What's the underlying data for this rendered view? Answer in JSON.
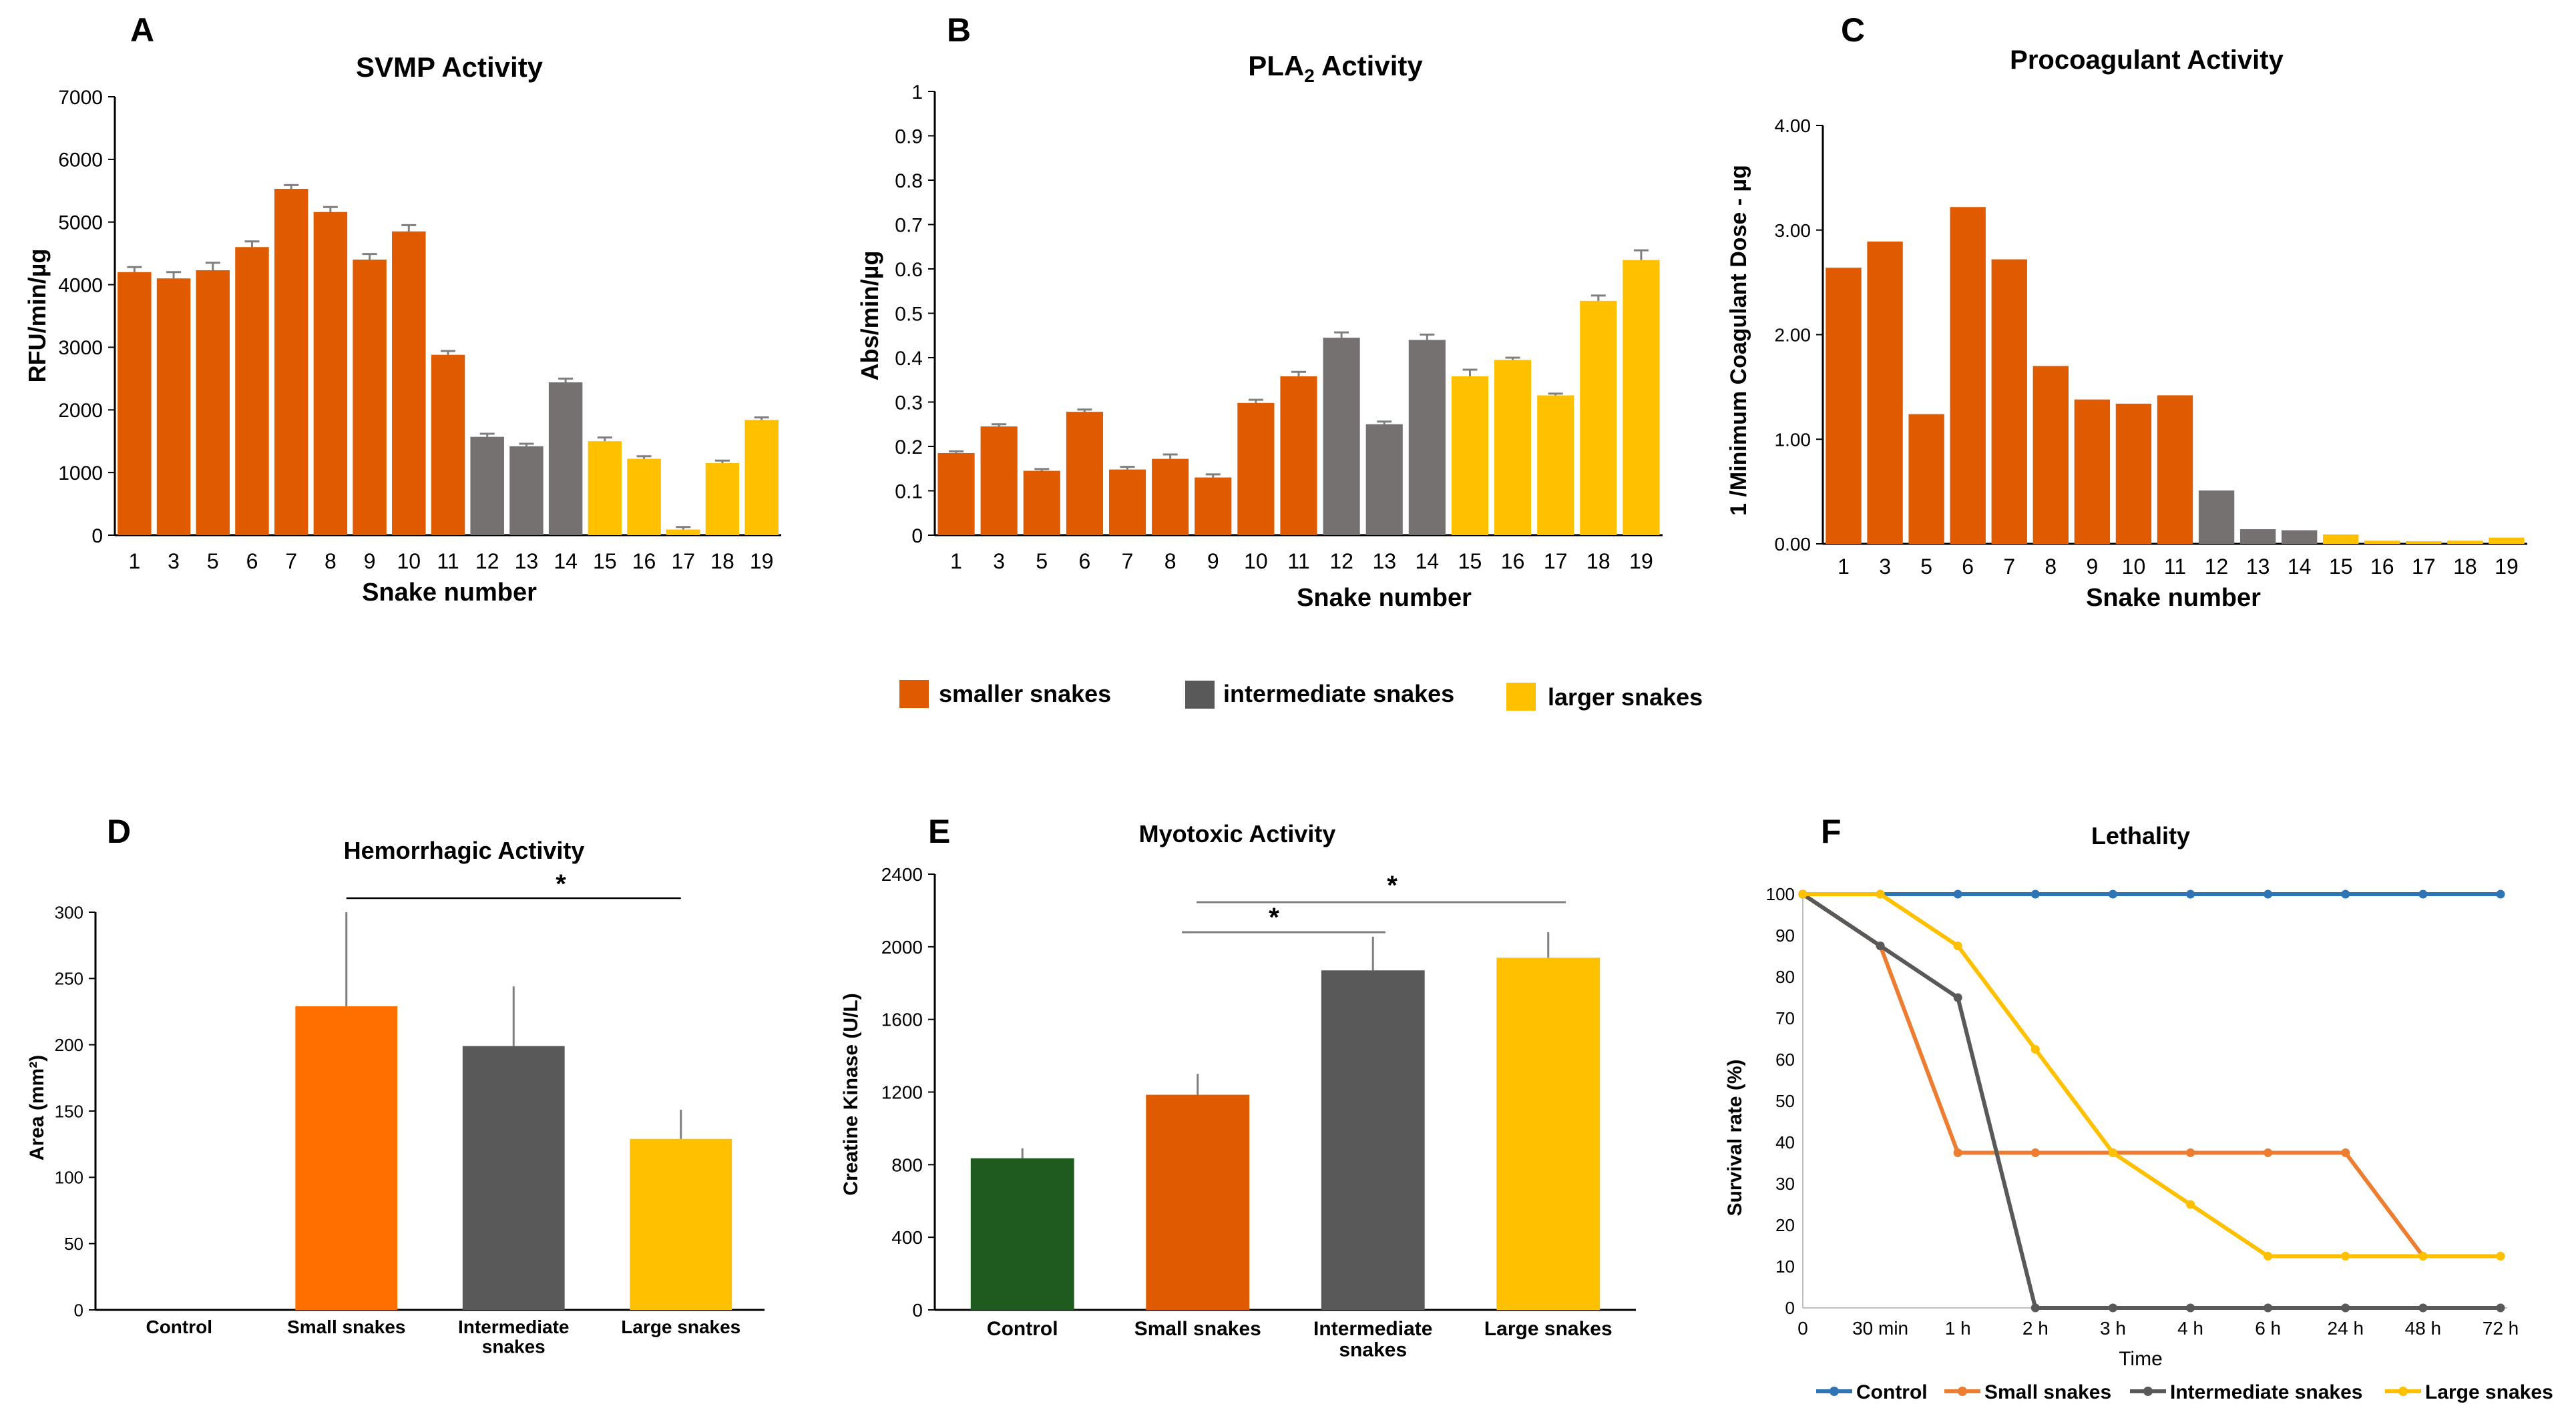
{
  "colors": {
    "small": "#E05A00",
    "intermediate": "#767171",
    "large": "#FFC000",
    "small_bright": "#FF6F00",
    "intermediate_dark": "#595959",
    "control_bar": "#1F5B1F",
    "control_line": "#2E75B6",
    "line_small": "#ED7D31",
    "line_intermediate": "#595959",
    "line_large": "#FFC000",
    "axis": "#000000",
    "error": "#7F7F7F"
  },
  "legend": {
    "items": [
      {
        "label": "smaller snakes",
        "color": "#E05A00"
      },
      {
        "label": "intermediate snakes",
        "color": "#595959"
      },
      {
        "label": "larger snakes",
        "color": "#FFC000"
      }
    ]
  },
  "chart_data": [
    {
      "panel": "A",
      "type": "bar",
      "title": "SVMP Activity",
      "xlabel": "Snake number",
      "ylabel": "RFU/min/µg",
      "ylim": [
        0,
        7000
      ],
      "yticks": [
        "0",
        "1000",
        "2000",
        "3000",
        "4000",
        "5000",
        "6000",
        "7000"
      ],
      "categories": [
        "1",
        "3",
        "5",
        "6",
        "7",
        "8",
        "9",
        "10",
        "11",
        "12",
        "13",
        "14",
        "15",
        "16",
        "17",
        "18",
        "19"
      ],
      "values": [
        4200,
        4100,
        4230,
        4600,
        5530,
        5160,
        4400,
        4850,
        2880,
        1570,
        1420,
        2440,
        1500,
        1220,
        90,
        1150,
        1840
      ],
      "errors": [
        80,
        100,
        120,
        90,
        60,
        80,
        90,
        100,
        60,
        50,
        40,
        60,
        60,
        40,
        40,
        40,
        40
      ],
      "groups": [
        "small",
        "small",
        "small",
        "small",
        "small",
        "small",
        "small",
        "small",
        "small",
        "intermediate",
        "intermediate",
        "intermediate",
        "large",
        "large",
        "large",
        "large",
        "large"
      ]
    },
    {
      "panel": "B",
      "type": "bar",
      "title": "PLA",
      "title_sub": "2",
      "title_rest": " Activity",
      "xlabel": "Snake number",
      "ylabel": "Abs/min/µg",
      "ylim": [
        0,
        1
      ],
      "yticks": [
        "0",
        "0.1",
        "0.2",
        "0.3",
        "0.4",
        "0.5",
        "0.6",
        "0.7",
        "0.8",
        "0.9",
        "1"
      ],
      "categories": [
        "1",
        "3",
        "5",
        "6",
        "7",
        "8",
        "9",
        "10",
        "11",
        "12",
        "13",
        "14",
        "15",
        "16",
        "17",
        "18",
        "19"
      ],
      "values": [
        0.185,
        0.245,
        0.145,
        0.278,
        0.148,
        0.172,
        0.13,
        0.298,
        0.358,
        0.445,
        0.25,
        0.44,
        0.358,
        0.395,
        0.315,
        0.528,
        0.62
      ],
      "errors": [
        0.004,
        0.005,
        0.004,
        0.005,
        0.006,
        0.01,
        0.007,
        0.007,
        0.01,
        0.012,
        0.006,
        0.012,
        0.015,
        0.005,
        0.004,
        0.012,
        0.022
      ],
      "groups": [
        "small",
        "small",
        "small",
        "small",
        "small",
        "small",
        "small",
        "small",
        "small",
        "intermediate",
        "intermediate",
        "intermediate",
        "large",
        "large",
        "large",
        "large",
        "large"
      ]
    },
    {
      "panel": "C",
      "type": "bar",
      "title": "Procoagulant Activity",
      "xlabel": "Snake number",
      "ylabel": "1 /Minimum Coagulant Dose - µg",
      "ylim": [
        0,
        4
      ],
      "yticks": [
        "0.00",
        "1.00",
        "2.00",
        "3.00",
        "4.00"
      ],
      "categories": [
        "1",
        "3",
        "5",
        "6",
        "7",
        "8",
        "9",
        "10",
        "11",
        "12",
        "13",
        "14",
        "15",
        "16",
        "17",
        "18",
        "19"
      ],
      "values": [
        2.64,
        2.89,
        1.24,
        3.22,
        2.72,
        1.7,
        1.38,
        1.34,
        1.42,
        0.51,
        0.14,
        0.13,
        0.09,
        0.03,
        0.025,
        0.03,
        0.06
      ],
      "groups": [
        "small",
        "small",
        "small",
        "small",
        "small",
        "small",
        "small",
        "small",
        "small",
        "intermediate",
        "intermediate",
        "intermediate",
        "large",
        "large",
        "large",
        "large",
        "large"
      ]
    },
    {
      "panel": "D",
      "type": "bar",
      "title": "Hemorrhagic Activity",
      "xlabel": "",
      "ylabel": "Area (mm²)",
      "ylim": [
        0,
        300
      ],
      "yticks": [
        "0",
        "50",
        "100",
        "150",
        "200",
        "250",
        "300"
      ],
      "categories": [
        "Control",
        "Small snakes",
        "Intermediate snakes",
        "Large snakes"
      ],
      "values": [
        0,
        229,
        199,
        129
      ],
      "errors": [
        0,
        71,
        45,
        22
      ],
      "bar_colors": [
        "#FF6F00",
        "#FF6F00",
        "#595959",
        "#FFC000"
      ],
      "annotations": [
        "*"
      ]
    },
    {
      "panel": "E",
      "type": "bar",
      "title": "Myotoxic Activity",
      "xlabel": "",
      "ylabel": "Creatine Kinase (U/L)",
      "ylim": [
        0,
        2400
      ],
      "yticks": [
        "0",
        "400",
        "800",
        "1200",
        "1600",
        "2000",
        "2400"
      ],
      "categories": [
        "Control",
        "Small snakes",
        "Intermediate snakes",
        "Large snakes"
      ],
      "values": [
        835,
        1185,
        1870,
        1940
      ],
      "errors": [
        55,
        115,
        185,
        140
      ],
      "bar_colors": [
        "#1F5B1F",
        "#E05A00",
        "#595959",
        "#FFC000"
      ],
      "annotations": [
        "*",
        "*"
      ]
    },
    {
      "panel": "F",
      "type": "line",
      "title": "Lethality",
      "xlabel": "Time",
      "ylabel": "Survival rate (%)",
      "ylim": [
        0,
        100
      ],
      "yticks": [
        "0",
        "10",
        "20",
        "30",
        "40",
        "50",
        "60",
        "70",
        "80",
        "90",
        "100"
      ],
      "x": [
        "0",
        "30 min",
        "1 h",
        "2 h",
        "3 h",
        "4 h",
        "6 h",
        "24 h",
        "48 h",
        "72 h"
      ],
      "series": [
        {
          "name": "Control",
          "color": "#2E75B6",
          "values": [
            100,
            100,
            100,
            100,
            100,
            100,
            100,
            100,
            100,
            100
          ]
        },
        {
          "name": "Small snakes",
          "color": "#ED7D31",
          "values": [
            100,
            87.5,
            37.5,
            37.5,
            37.5,
            37.5,
            37.5,
            37.5,
            12.5,
            12.5
          ]
        },
        {
          "name": "Intermediate snakes",
          "color": "#595959",
          "values": [
            100,
            87.5,
            75,
            0,
            0,
            0,
            0,
            0,
            0,
            0
          ]
        },
        {
          "name": "Large snakes",
          "color": "#FFC000",
          "values": [
            100,
            100,
            87.5,
            62.5,
            37.5,
            25,
            12.5,
            12.5,
            12.5,
            12.5
          ]
        }
      ]
    }
  ]
}
